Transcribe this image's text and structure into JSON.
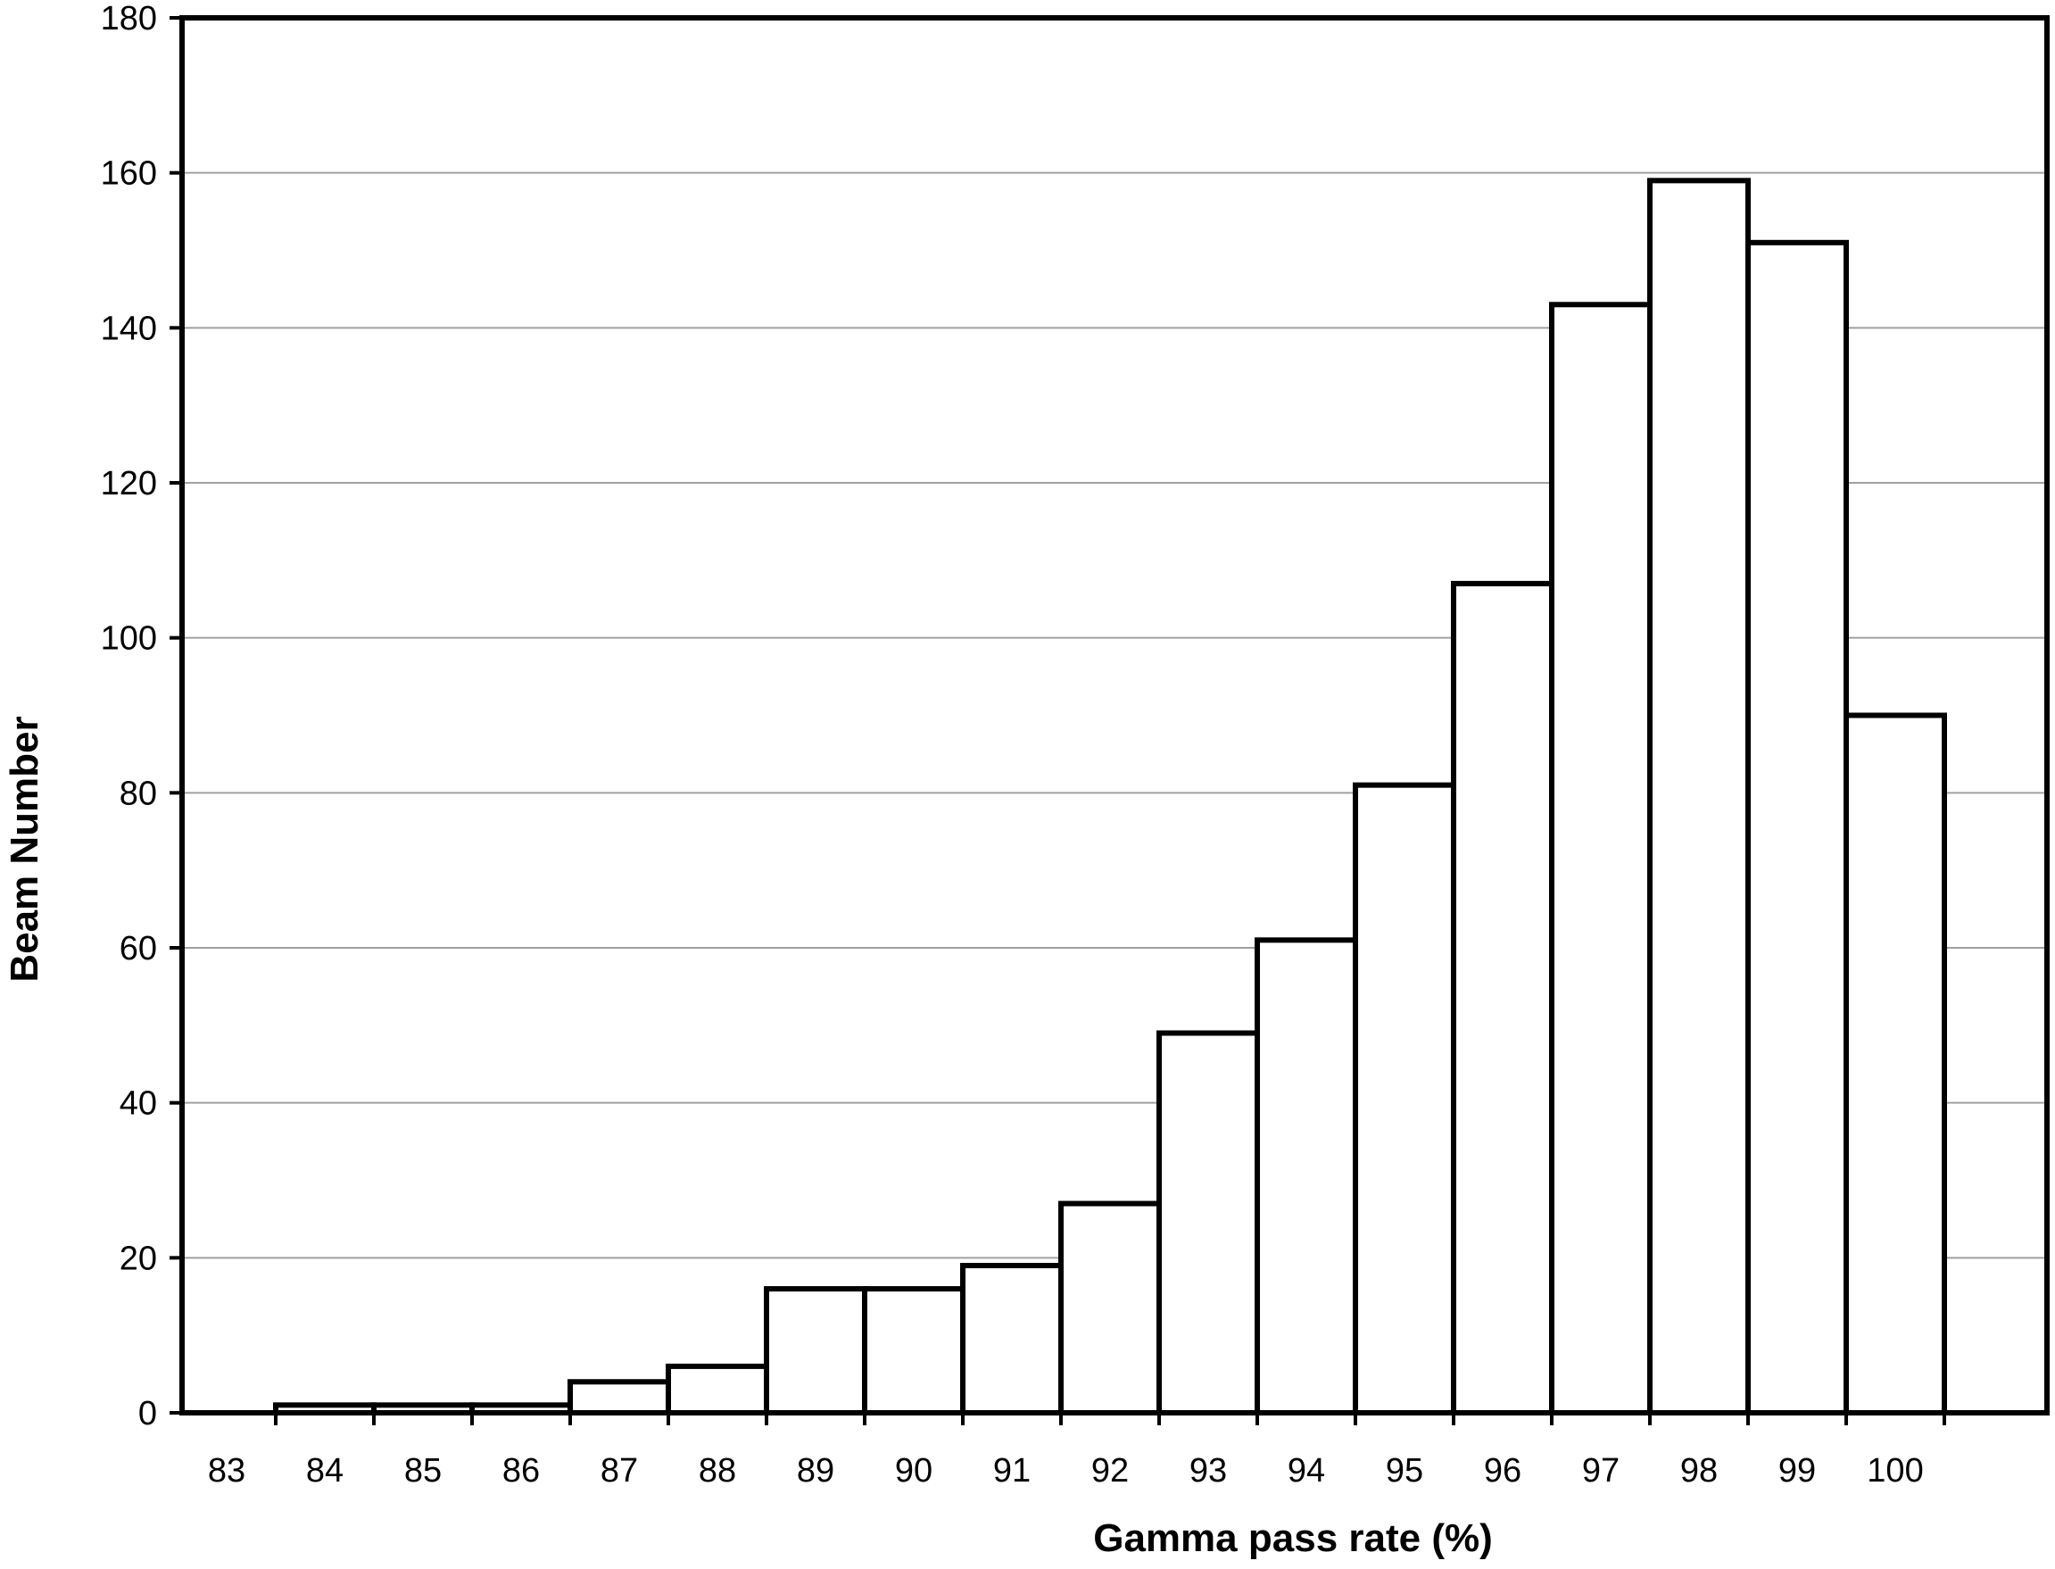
{
  "chart_data": {
    "type": "bar",
    "xlabel": "Gamma pass rate (%)",
    "ylabel": "Beam Number",
    "ylim": [
      0,
      180
    ],
    "yticks": [
      0,
      20,
      40,
      60,
      80,
      100,
      120,
      140,
      160,
      180
    ],
    "categories": [
      "83",
      "84",
      "85",
      "86",
      "87",
      "88",
      "89",
      "90",
      "91",
      "92",
      "93",
      "94",
      "95",
      "96",
      "97",
      "98",
      "99",
      "100"
    ],
    "values": [
      0,
      1,
      1,
      1,
      4,
      6,
      16,
      16,
      19,
      27,
      49,
      61,
      81,
      107,
      143,
      159,
      151,
      90
    ],
    "grid": "horizontal",
    "colors": {
      "bar_fill": "#ffffff",
      "bar_edge": "#000000",
      "grid": "#a0a0a0"
    }
  }
}
